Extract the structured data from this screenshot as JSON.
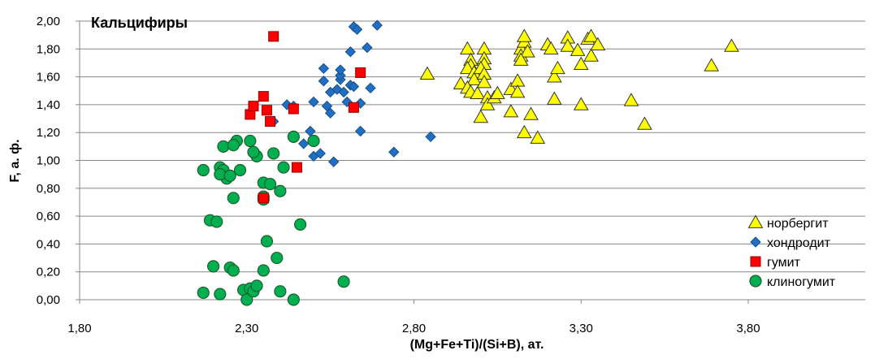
{
  "chart_data": {
    "type": "scatter",
    "title": "Кальцифиры",
    "xlabel": "(Mg+Fe+Ti)/(Si+B), ат.",
    "ylabel": "F, а. ф.",
    "xlim": [
      1.8,
      4.15
    ],
    "ylim": [
      0,
      2.0
    ],
    "x_ticks": [
      "1,80",
      "2,30",
      "2,80",
      "3,30",
      "3,80"
    ],
    "y_ticks": [
      "0,00",
      "0,20",
      "0,40",
      "0,60",
      "0,80",
      "1,00",
      "1,20",
      "1,40",
      "1,60",
      "1,80",
      "2,00"
    ],
    "grid": "horizontal",
    "legend_position": "bottom-right",
    "series": [
      {
        "name": "норбергит",
        "marker": "triangle",
        "color": "#ffff00",
        "stroke": "#333333",
        "points": [
          [
            2.96,
            1.8
          ],
          [
            2.97,
            1.72
          ],
          [
            2.97,
            1.68
          ],
          [
            2.96,
            1.66
          ],
          [
            2.98,
            1.63
          ],
          [
            2.98,
            1.58
          ],
          [
            2.94,
            1.55
          ],
          [
            2.96,
            1.52
          ],
          [
            2.97,
            1.49
          ],
          [
            2.99,
            1.48
          ],
          [
            3.01,
            1.8
          ],
          [
            3.01,
            1.73
          ],
          [
            3.01,
            1.69
          ],
          [
            3.0,
            1.66
          ],
          [
            3.01,
            1.62
          ],
          [
            3.01,
            1.56
          ],
          [
            3.02,
            1.45
          ],
          [
            3.02,
            1.4
          ],
          [
            3.0,
            1.31
          ],
          [
            2.84,
            1.62
          ],
          [
            3.04,
            1.45
          ],
          [
            3.05,
            1.48
          ],
          [
            3.09,
            1.51
          ],
          [
            3.09,
            1.35
          ],
          [
            3.11,
            1.57
          ],
          [
            3.11,
            1.49
          ],
          [
            3.12,
            1.8
          ],
          [
            3.12,
            1.75
          ],
          [
            3.13,
            1.85
          ],
          [
            3.13,
            1.89
          ],
          [
            3.14,
            1.78
          ],
          [
            3.13,
            1.2
          ],
          [
            3.15,
            1.33
          ],
          [
            3.17,
            1.16
          ],
          [
            3.12,
            1.72
          ],
          [
            3.2,
            1.83
          ],
          [
            3.21,
            1.8
          ],
          [
            3.22,
            1.44
          ],
          [
            3.22,
            1.6
          ],
          [
            3.23,
            1.66
          ],
          [
            3.26,
            1.88
          ],
          [
            3.26,
            1.82
          ],
          [
            3.29,
            1.79
          ],
          [
            3.3,
            1.69
          ],
          [
            3.3,
            1.4
          ],
          [
            3.32,
            1.87
          ],
          [
            3.33,
            1.89
          ],
          [
            3.33,
            1.75
          ],
          [
            3.35,
            1.83
          ],
          [
            3.45,
            1.43
          ],
          [
            3.49,
            1.26
          ],
          [
            3.69,
            1.68
          ],
          [
            3.75,
            1.82
          ]
        ]
      },
      {
        "name": "хондродит",
        "marker": "diamond",
        "color": "#1f6fc4",
        "stroke": "#1a4f8a",
        "points": [
          [
            2.38,
            1.28
          ],
          [
            2.42,
            1.4
          ],
          [
            2.44,
            1.39
          ],
          [
            2.47,
            1.12
          ],
          [
            2.49,
            1.21
          ],
          [
            2.5,
            1.42
          ],
          [
            2.5,
            1.03
          ],
          [
            2.52,
            1.05
          ],
          [
            2.53,
            1.66
          ],
          [
            2.53,
            1.57
          ],
          [
            2.54,
            1.39
          ],
          [
            2.55,
            1.34
          ],
          [
            2.55,
            1.49
          ],
          [
            2.56,
            0.99
          ],
          [
            2.57,
            1.51
          ],
          [
            2.58,
            1.58
          ],
          [
            2.58,
            1.61
          ],
          [
            2.58,
            1.65
          ],
          [
            2.59,
            1.49
          ],
          [
            2.6,
            1.42
          ],
          [
            2.61,
            1.54
          ],
          [
            2.61,
            1.78
          ],
          [
            2.62,
            1.96
          ],
          [
            2.62,
            1.53
          ],
          [
            2.63,
            1.94
          ],
          [
            2.64,
            1.41
          ],
          [
            2.64,
            1.21
          ],
          [
            2.66,
            1.81
          ],
          [
            2.67,
            1.52
          ],
          [
            2.69,
            1.97
          ],
          [
            2.74,
            1.06
          ],
          [
            2.85,
            1.17
          ]
        ]
      },
      {
        "name": "гумит",
        "marker": "square",
        "color": "#ff0000",
        "stroke": "#990000",
        "points": [
          [
            2.31,
            1.33
          ],
          [
            2.32,
            1.39
          ],
          [
            2.35,
            1.46
          ],
          [
            2.36,
            1.36
          ],
          [
            2.37,
            1.28
          ],
          [
            2.38,
            1.89
          ],
          [
            2.44,
            1.37
          ],
          [
            2.45,
            0.95
          ],
          [
            2.62,
            1.38
          ],
          [
            2.64,
            1.63
          ],
          [
            2.35,
            0.73
          ]
        ]
      },
      {
        "name": "клиногумит",
        "marker": "circle",
        "color": "#00b050",
        "stroke": "#1f5f2f",
        "points": [
          [
            2.17,
            0.93
          ],
          [
            2.19,
            0.57
          ],
          [
            2.2,
            0.24
          ],
          [
            2.21,
            0.56
          ],
          [
            2.22,
            0.95
          ],
          [
            2.23,
            0.93
          ],
          [
            2.24,
            0.87
          ],
          [
            2.22,
            0.9
          ],
          [
            2.23,
            1.1
          ],
          [
            2.25,
            0.89
          ],
          [
            2.26,
            0.73
          ],
          [
            2.27,
            1.14
          ],
          [
            2.26,
            1.11
          ],
          [
            2.28,
            0.93
          ],
          [
            2.29,
            0.07
          ],
          [
            2.31,
            0.08
          ],
          [
            2.3,
            0.0
          ],
          [
            2.32,
            0.06
          ],
          [
            2.33,
            0.1
          ],
          [
            2.33,
            1.03
          ],
          [
            2.31,
            1.14
          ],
          [
            2.32,
            1.06
          ],
          [
            2.35,
            0.84
          ],
          [
            2.35,
            0.74
          ],
          [
            2.35,
            0.72
          ],
          [
            2.35,
            0.21
          ],
          [
            2.36,
            0.42
          ],
          [
            2.37,
            0.83
          ],
          [
            2.38,
            1.05
          ],
          [
            2.39,
            0.3
          ],
          [
            2.4,
            0.78
          ],
          [
            2.4,
            0.06
          ],
          [
            2.41,
            0.95
          ],
          [
            2.44,
            1.17
          ],
          [
            2.44,
            0.0
          ],
          [
            2.46,
            0.54
          ],
          [
            2.5,
            1.14
          ],
          [
            2.59,
            0.13
          ],
          [
            2.17,
            0.05
          ],
          [
            2.22,
            0.04
          ],
          [
            2.25,
            0.23
          ],
          [
            2.26,
            0.21
          ]
        ]
      }
    ]
  }
}
